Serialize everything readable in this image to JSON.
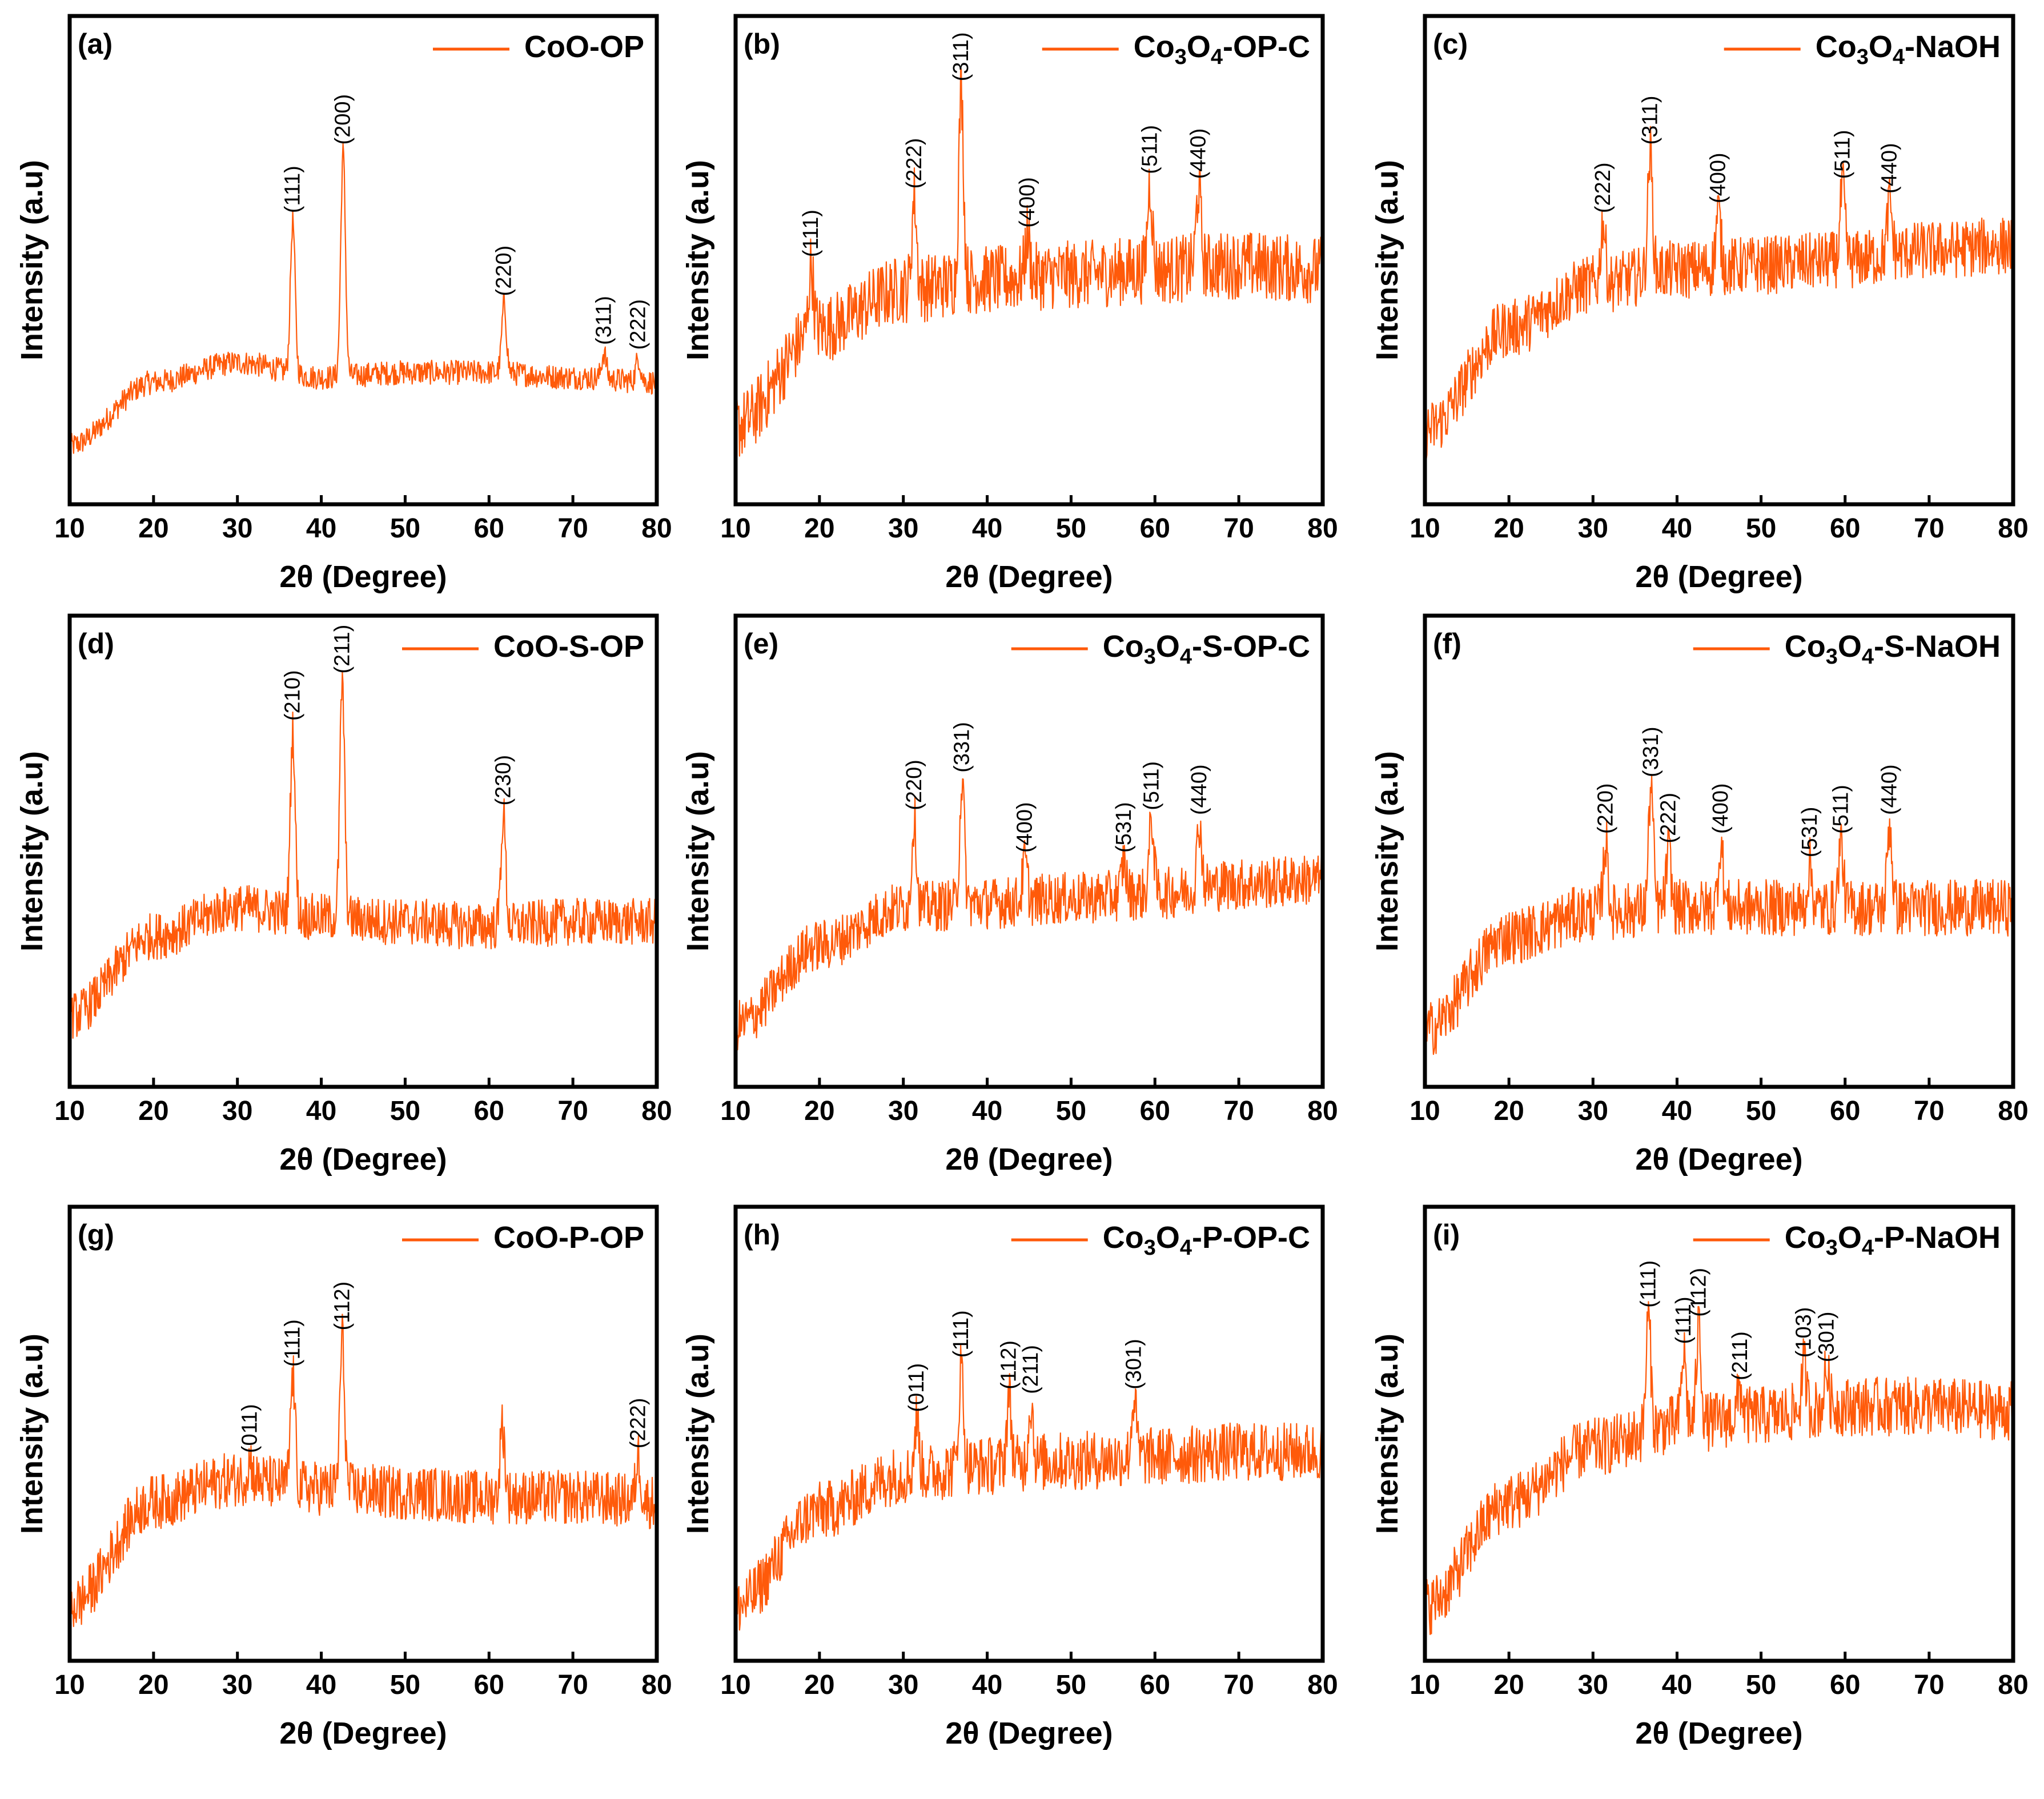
{
  "figure": {
    "series_color": "#FF5A0A",
    "x_axis_label": "2θ (Degree)",
    "y_axis_label": "Intensity (a.u)"
  },
  "chart_data": [
    {
      "type": "line",
      "panel_label": "(a)",
      "legend": {
        "parts": [
          {
            "t": "CoO-OP"
          }
        ]
      },
      "xlabel": "2θ (Degree)",
      "ylabel": "Intensity (a.u)",
      "xlim": [
        10,
        80
      ],
      "xticks": [
        10,
        20,
        30,
        40,
        50,
        60,
        70,
        80
      ],
      "baseline": [
        [
          10,
          0.12
        ],
        [
          20,
          0.25
        ],
        [
          30,
          0.29
        ],
        [
          40,
          0.26
        ],
        [
          50,
          0.27
        ],
        [
          60,
          0.27
        ],
        [
          70,
          0.26
        ],
        [
          80,
          0.25
        ]
      ],
      "noise": 0.025,
      "peaks": [
        {
          "x": 36.6,
          "h": 0.58,
          "label": "(111)"
        },
        {
          "x": 42.6,
          "h": 0.72,
          "label": "(200)"
        },
        {
          "x": 61.8,
          "h": 0.41,
          "label": "(220)"
        },
        {
          "x": 73.7,
          "h": 0.31,
          "label": "(311)"
        },
        {
          "x": 77.8,
          "h": 0.3,
          "label": "(222)"
        }
      ]
    },
    {
      "type": "line",
      "panel_label": "(b)",
      "legend": {
        "parts": [
          {
            "t": "Co"
          },
          {
            "t": "3"
          },
          {
            "t": "O"
          },
          {
            "t": "4"
          },
          {
            "t": "-OP-C"
          }
        ]
      },
      "xlabel": "2θ (Degree)",
      "ylabel": "Intensity (a.u)",
      "xlim": [
        10,
        80
      ],
      "xticks": [
        10,
        20,
        30,
        40,
        50,
        60,
        70,
        80
      ],
      "baseline": [
        [
          10,
          0.16
        ],
        [
          20,
          0.36
        ],
        [
          30,
          0.44
        ],
        [
          40,
          0.46
        ],
        [
          50,
          0.47
        ],
        [
          60,
          0.48
        ],
        [
          70,
          0.49
        ],
        [
          80,
          0.48
        ]
      ],
      "noise": 0.07,
      "peaks": [
        {
          "x": 19.0,
          "h": 0.49,
          "label": "(111)"
        },
        {
          "x": 31.3,
          "h": 0.63,
          "label": "(222)"
        },
        {
          "x": 36.9,
          "h": 0.85,
          "label": "(311)"
        },
        {
          "x": 44.8,
          "h": 0.55,
          "label": "(400)"
        },
        {
          "x": 59.4,
          "h": 0.66,
          "label": "(511)"
        },
        {
          "x": 65.2,
          "h": 0.65,
          "label": "(440)"
        }
      ]
    },
    {
      "type": "line",
      "panel_label": "(c)",
      "legend": {
        "parts": [
          {
            "t": "Co"
          },
          {
            "t": "3"
          },
          {
            "t": "O"
          },
          {
            "t": "4"
          },
          {
            "t": "-NaOH"
          }
        ]
      },
      "xlabel": "2θ (Degree)",
      "ylabel": "Intensity (a.u)",
      "xlim": [
        10,
        80
      ],
      "xticks": [
        10,
        20,
        30,
        40,
        50,
        60,
        70,
        80
      ],
      "baseline": [
        [
          10,
          0.15
        ],
        [
          20,
          0.36
        ],
        [
          30,
          0.45
        ],
        [
          40,
          0.48
        ],
        [
          50,
          0.49
        ],
        [
          60,
          0.5
        ],
        [
          70,
          0.52
        ],
        [
          80,
          0.53
        ]
      ],
      "noise": 0.06,
      "peaks": [
        {
          "x": 31.2,
          "h": 0.58,
          "label": "(222)"
        },
        {
          "x": 36.8,
          "h": 0.72,
          "label": "(311)"
        },
        {
          "x": 44.9,
          "h": 0.6,
          "label": "(400)"
        },
        {
          "x": 59.7,
          "h": 0.65,
          "label": "(511)"
        },
        {
          "x": 65.3,
          "h": 0.62,
          "label": "(440)"
        }
      ]
    },
    {
      "type": "line",
      "panel_label": "(d)",
      "legend": {
        "parts": [
          {
            "t": "CoO-S-OP"
          }
        ]
      },
      "xlabel": "2θ (Degree)",
      "ylabel": "Intensity (a.u)",
      "xlim": [
        10,
        80
      ],
      "xticks": [
        10,
        20,
        30,
        40,
        50,
        60,
        70,
        80
      ],
      "baseline": [
        [
          10,
          0.15
        ],
        [
          20,
          0.32
        ],
        [
          30,
          0.38
        ],
        [
          40,
          0.36
        ],
        [
          50,
          0.35
        ],
        [
          60,
          0.34
        ],
        [
          70,
          0.35
        ],
        [
          80,
          0.35
        ]
      ],
      "noise": 0.05,
      "peaks": [
        {
          "x": 36.6,
          "h": 0.76,
          "label": "(210)"
        },
        {
          "x": 42.5,
          "h": 0.86,
          "label": "(211)"
        },
        {
          "x": 61.7,
          "h": 0.58,
          "label": "(230)"
        }
      ]
    },
    {
      "type": "line",
      "panel_label": "(e)",
      "legend": {
        "parts": [
          {
            "t": "Co"
          },
          {
            "t": "3"
          },
          {
            "t": "O"
          },
          {
            "t": "4"
          },
          {
            "t": "-S-OP-C"
          }
        ]
      },
      "xlabel": "2θ (Degree)",
      "ylabel": "Intensity (a.u)",
      "xlim": [
        10,
        80
      ],
      "xticks": [
        10,
        20,
        30,
        40,
        50,
        60,
        70,
        80
      ],
      "baseline": [
        [
          10,
          0.13
        ],
        [
          20,
          0.3
        ],
        [
          30,
          0.38
        ],
        [
          40,
          0.39
        ],
        [
          50,
          0.4
        ],
        [
          60,
          0.41
        ],
        [
          70,
          0.43
        ],
        [
          80,
          0.44
        ]
      ],
      "noise": 0.055,
      "peaks": [
        {
          "x": 31.3,
          "h": 0.57,
          "label": "(220)"
        },
        {
          "x": 37.0,
          "h": 0.65,
          "label": "(331)"
        },
        {
          "x": 44.5,
          "h": 0.48,
          "label": "(400)"
        },
        {
          "x": 56.3,
          "h": 0.48,
          "label": "(531)"
        },
        {
          "x": 59.6,
          "h": 0.57,
          "label": "(511)"
        },
        {
          "x": 65.3,
          "h": 0.56,
          "label": "(440)"
        }
      ]
    },
    {
      "type": "line",
      "panel_label": "(f)",
      "legend": {
        "parts": [
          {
            "t": "Co"
          },
          {
            "t": "3"
          },
          {
            "t": "O"
          },
          {
            "t": "4"
          },
          {
            "t": "-S-NaOH"
          }
        ]
      },
      "xlabel": "2θ (Degree)",
      "ylabel": "Intensity (a.u)",
      "xlim": [
        10,
        80
      ],
      "xticks": [
        10,
        20,
        30,
        40,
        50,
        60,
        70,
        80
      ],
      "baseline": [
        [
          10,
          0.12
        ],
        [
          20,
          0.32
        ],
        [
          30,
          0.37
        ],
        [
          40,
          0.38
        ],
        [
          50,
          0.38
        ],
        [
          60,
          0.38
        ],
        [
          70,
          0.38
        ],
        [
          80,
          0.38
        ]
      ],
      "noise": 0.06,
      "peaks": [
        {
          "x": 31.5,
          "h": 0.52,
          "label": "(220)"
        },
        {
          "x": 36.9,
          "h": 0.64,
          "label": "(331)"
        },
        {
          "x": 39.0,
          "h": 0.5,
          "label": "(222)"
        },
        {
          "x": 45.2,
          "h": 0.52,
          "label": "(400)"
        },
        {
          "x": 55.8,
          "h": 0.47,
          "label": "(531)"
        },
        {
          "x": 59.5,
          "h": 0.52,
          "label": "(511)"
        },
        {
          "x": 65.3,
          "h": 0.56,
          "label": "(440)"
        }
      ]
    },
    {
      "type": "line",
      "panel_label": "(g)",
      "legend": {
        "parts": [
          {
            "t": "CoO-P-OP"
          }
        ]
      },
      "xlabel": "2θ (Degree)",
      "ylabel": "Intensity (a.u)",
      "xlim": [
        10,
        80
      ],
      "xticks": [
        10,
        20,
        30,
        40,
        50,
        60,
        70,
        80
      ],
      "baseline": [
        [
          10,
          0.12
        ],
        [
          20,
          0.35
        ],
        [
          30,
          0.4
        ],
        [
          40,
          0.38
        ],
        [
          50,
          0.37
        ],
        [
          60,
          0.36
        ],
        [
          70,
          0.36
        ],
        [
          80,
          0.35
        ]
      ],
      "noise": 0.06,
      "peaks": [
        {
          "x": 31.5,
          "h": 0.44,
          "label": "(011)"
        },
        {
          "x": 36.6,
          "h": 0.63,
          "label": "(111)"
        },
        {
          "x": 42.5,
          "h": 0.71,
          "label": "(112)"
        },
        {
          "x": 61.6,
          "h": 0.52,
          "label": ""
        },
        {
          "x": 77.8,
          "h": 0.45,
          "label": "(222)"
        }
      ]
    },
    {
      "type": "line",
      "panel_label": "(h)",
      "legend": {
        "parts": [
          {
            "t": "Co"
          },
          {
            "t": "3"
          },
          {
            "t": "O"
          },
          {
            "t": "4"
          },
          {
            "t": "-P-OP-C"
          }
        ]
      },
      "xlabel": "2θ (Degree)",
      "ylabel": "Intensity (a.u)",
      "xlim": [
        10,
        80
      ],
      "xticks": [
        10,
        20,
        30,
        40,
        50,
        60,
        70,
        80
      ],
      "baseline": [
        [
          10,
          0.12
        ],
        [
          20,
          0.33
        ],
        [
          30,
          0.41
        ],
        [
          40,
          0.43
        ],
        [
          50,
          0.44
        ],
        [
          60,
          0.45
        ],
        [
          70,
          0.46
        ],
        [
          80,
          0.46
        ]
      ],
      "noise": 0.065,
      "peaks": [
        {
          "x": 31.6,
          "h": 0.53,
          "label": "(011)"
        },
        {
          "x": 36.9,
          "h": 0.65,
          "label": "(111)"
        },
        {
          "x": 42.6,
          "h": 0.58,
          "label": "(112)"
        },
        {
          "x": 45.2,
          "h": 0.57,
          "label": "(211)"
        },
        {
          "x": 57.5,
          "h": 0.58,
          "label": "(301)"
        }
      ]
    },
    {
      "type": "line",
      "panel_label": "(i)",
      "legend": {
        "parts": [
          {
            "t": "Co"
          },
          {
            "t": "3"
          },
          {
            "t": "O"
          },
          {
            "t": "4"
          },
          {
            "t": "-P-NaOH"
          }
        ]
      },
      "xlabel": "2θ (Degree)",
      "ylabel": "Intensity (a.u)",
      "xlim": [
        10,
        80
      ],
      "xticks": [
        10,
        20,
        30,
        40,
        50,
        60,
        70,
        80
      ],
      "baseline": [
        [
          10,
          0.12
        ],
        [
          20,
          0.35
        ],
        [
          30,
          0.47
        ],
        [
          40,
          0.52
        ],
        [
          50,
          0.54
        ],
        [
          60,
          0.56
        ],
        [
          70,
          0.56
        ],
        [
          80,
          0.55
        ]
      ],
      "noise": 0.065,
      "peaks": [
        {
          "x": 36.6,
          "h": 0.76,
          "label": "(111)"
        },
        {
          "x": 40.8,
          "h": 0.68,
          "label": "(111)"
        },
        {
          "x": 42.6,
          "h": 0.74,
          "label": "(112)"
        },
        {
          "x": 47.5,
          "h": 0.6,
          "label": "(211)"
        },
        {
          "x": 55.1,
          "h": 0.65,
          "label": "(103)"
        },
        {
          "x": 57.8,
          "h": 0.64,
          "label": "(301)"
        }
      ]
    }
  ]
}
